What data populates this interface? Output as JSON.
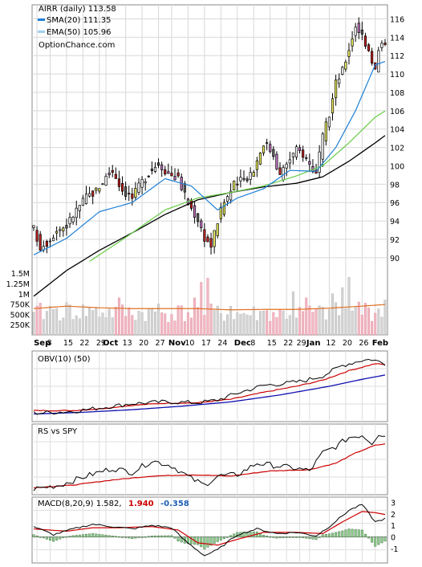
{
  "chart_data": [
    {
      "type": "candlestick",
      "title": "AIRR (daily) 113.58",
      "watermark": "OptionChance.com",
      "legend": [
        {
          "label": "SMA(20) 111.35",
          "color": "#1e7fd6"
        },
        {
          "label": "EMA(50) 105.96",
          "color": "#9fd0f0"
        }
      ],
      "x_tick_labels": [
        "Sep",
        "8",
        "15",
        "22",
        "29",
        "Oct",
        "13",
        "20",
        "27",
        "Nov",
        "10",
        "17",
        "24",
        "Dec",
        "8",
        "15",
        "22",
        "29",
        "Jan",
        "12",
        "20",
        "26",
        "Feb"
      ],
      "y_tick_labels": [
        "116",
        "114",
        "112",
        "110",
        "108",
        "106",
        "104",
        "102",
        "100",
        "98",
        "96",
        "94",
        "92",
        "90"
      ],
      "ylim": [
        88.5,
        117
      ],
      "grid": true,
      "close_anchors": [
        [
          0,
          93.1
        ],
        [
          2,
          91.2
        ],
        [
          4,
          91.7
        ],
        [
          7,
          93.0
        ],
        [
          10,
          93.5
        ],
        [
          13,
          95.2
        ],
        [
          16,
          96.6
        ],
        [
          19,
          97.3
        ],
        [
          22,
          98.8
        ],
        [
          24,
          99.5
        ],
        [
          27,
          97.4
        ],
        [
          30,
          96.5
        ],
        [
          33,
          98.3
        ],
        [
          36,
          99.7
        ],
        [
          38,
          100.3
        ],
        [
          41,
          99.2
        ],
        [
          44,
          98.6
        ],
        [
          47,
          95.9
        ],
        [
          50,
          94.2
        ],
        [
          52,
          92.2
        ],
        [
          54,
          91.3
        ],
        [
          56,
          94.0
        ],
        [
          58,
          96.1
        ],
        [
          61,
          97.9
        ],
        [
          64,
          98.5
        ],
        [
          67,
          99.6
        ],
        [
          70,
          102.6
        ],
        [
          73,
          101.3
        ],
        [
          75,
          98.9
        ],
        [
          77,
          100.3
        ],
        [
          80,
          101.7
        ],
        [
          82,
          101.3
        ],
        [
          84,
          100.2
        ],
        [
          86,
          99.1
        ],
        [
          88,
          103.0
        ],
        [
          90,
          105.6
        ],
        [
          92,
          109.0
        ],
        [
          94,
          110.3
        ],
        [
          96,
          112.8
        ],
        [
          98,
          115.3
        ],
        [
          100,
          114.2
        ],
        [
          102,
          112.7
        ],
        [
          104,
          110.4
        ],
        [
          105,
          112.5
        ],
        [
          107,
          113.6
        ]
      ],
      "sma20_anchors": [
        [
          0,
          90.3
        ],
        [
          10,
          92.1
        ],
        [
          20,
          95.0
        ],
        [
          30,
          96.0
        ],
        [
          40,
          98.6
        ],
        [
          48,
          97.8
        ],
        [
          56,
          95.2
        ],
        [
          62,
          96.5
        ],
        [
          70,
          97.5
        ],
        [
          78,
          99.5
        ],
        [
          86,
          99.4
        ],
        [
          92,
          102.0
        ],
        [
          98,
          106.0
        ],
        [
          104,
          111.0
        ],
        [
          107,
          111.35
        ]
      ],
      "ema50_anchors": [
        [
          17,
          89.6
        ],
        [
          28,
          92.2
        ],
        [
          40,
          95.2
        ],
        [
          50,
          96.5
        ],
        [
          60,
          97.1
        ],
        [
          70,
          97.8
        ],
        [
          80,
          98.9
        ],
        [
          88,
          100.0
        ],
        [
          96,
          102.5
        ],
        [
          104,
          105.3
        ],
        [
          107,
          105.96
        ]
      ],
      "black_ma_anchors": [
        [
          0,
          85.8
        ],
        [
          10,
          88.6
        ],
        [
          20,
          90.8
        ],
        [
          30,
          92.7
        ],
        [
          40,
          94.7
        ],
        [
          50,
          96.3
        ],
        [
          60,
          97.1
        ],
        [
          70,
          97.7
        ],
        [
          80,
          98.1
        ],
        [
          88,
          98.8
        ],
        [
          96,
          100.5
        ],
        [
          104,
          102.5
        ],
        [
          107,
          103.3
        ]
      ],
      "volume": {
        "y_tick_labels": [
          "1.5M",
          "1.25M",
          "1M",
          "750K",
          "500K",
          "250K"
        ],
        "ylim": [
          0,
          1700000
        ],
        "avg_anchors": [
          [
            0,
            640000
          ],
          [
            10,
            700000
          ],
          [
            20,
            660000
          ],
          [
            30,
            640000
          ],
          [
            40,
            640000
          ],
          [
            50,
            640000
          ],
          [
            60,
            610000
          ],
          [
            70,
            620000
          ],
          [
            80,
            620000
          ],
          [
            90,
            650000
          ],
          [
            100,
            700000
          ],
          [
            107,
            740000
          ]
        ],
        "spikes": [
          [
            0,
            550000
          ],
          [
            5,
            700000
          ],
          [
            17,
            650000
          ],
          [
            26,
            900000
          ],
          [
            38,
            750000
          ],
          [
            49,
            900000
          ],
          [
            51,
            1280000
          ],
          [
            53,
            1380000
          ],
          [
            60,
            700000
          ],
          [
            70,
            580000
          ],
          [
            79,
            1050000
          ],
          [
            83,
            900000
          ],
          [
            91,
            1000000
          ],
          [
            94,
            1150000
          ],
          [
            96,
            1400000
          ],
          [
            99,
            800000
          ],
          [
            107,
            850000
          ]
        ]
      }
    },
    {
      "type": "line",
      "title": "OBV(10) (50)",
      "black_anchors": [
        [
          0,
          -0.3
        ],
        [
          12,
          -0.1
        ],
        [
          20,
          0.3
        ],
        [
          30,
          0.8
        ],
        [
          40,
          1.0
        ],
        [
          50,
          0.9
        ],
        [
          56,
          1.2
        ],
        [
          62,
          2.0
        ],
        [
          70,
          2.9
        ],
        [
          76,
          3.1
        ],
        [
          82,
          3.4
        ],
        [
          88,
          4.0
        ],
        [
          94,
          5.2
        ],
        [
          100,
          5.8
        ],
        [
          103,
          5.9
        ],
        [
          107,
          5.4
        ]
      ],
      "red_anchors": [
        [
          0,
          0.0
        ],
        [
          12,
          0.0
        ],
        [
          20,
          0.2
        ],
        [
          30,
          0.6
        ],
        [
          40,
          0.85
        ],
        [
          50,
          0.9
        ],
        [
          60,
          1.3
        ],
        [
          70,
          2.1
        ],
        [
          80,
          2.8
        ],
        [
          88,
          3.5
        ],
        [
          96,
          4.6
        ],
        [
          104,
          5.4
        ],
        [
          107,
          5.3
        ]
      ],
      "blue_anchors": [
        [
          0,
          -0.4
        ],
        [
          15,
          -0.2
        ],
        [
          30,
          0.1
        ],
        [
          45,
          0.5
        ],
        [
          60,
          1.0
        ],
        [
          75,
          1.8
        ],
        [
          90,
          2.8
        ],
        [
          100,
          3.6
        ],
        [
          107,
          4.1
        ]
      ],
      "ylim": [
        -1,
        6.5
      ]
    },
    {
      "type": "line",
      "title": "RS vs SPY",
      "black_anchors": [
        [
          0,
          0.2
        ],
        [
          8,
          0.5
        ],
        [
          16,
          1.2
        ],
        [
          24,
          1.8
        ],
        [
          30,
          1.5
        ],
        [
          36,
          2.4
        ],
        [
          42,
          2.0
        ],
        [
          48,
          1.0
        ],
        [
          52,
          0.5
        ],
        [
          56,
          1.2
        ],
        [
          62,
          1.3
        ],
        [
          68,
          2.2
        ],
        [
          74,
          2.0
        ],
        [
          80,
          1.8
        ],
        [
          84,
          1.6
        ],
        [
          88,
          3.0
        ],
        [
          92,
          3.5
        ],
        [
          96,
          4.2
        ],
        [
          100,
          4.4
        ],
        [
          103,
          3.8
        ],
        [
          105,
          4.5
        ],
        [
          107,
          4.3
        ]
      ],
      "red_anchors": [
        [
          0,
          0.3
        ],
        [
          12,
          0.5
        ],
        [
          24,
          0.9
        ],
        [
          36,
          1.2
        ],
        [
          48,
          1.3
        ],
        [
          60,
          1.2
        ],
        [
          72,
          1.6
        ],
        [
          84,
          1.7
        ],
        [
          92,
          2.2
        ],
        [
          98,
          3.0
        ],
        [
          104,
          3.6
        ],
        [
          107,
          3.7
        ]
      ],
      "ylim": [
        0,
        5
      ]
    },
    {
      "type": "line_and_bar",
      "title": "MACD(8,20,9) 1.582,",
      "values": {
        "macd": "1.582",
        "signal": "1.940",
        "histogram": "-0.358"
      },
      "colors": {
        "macd": "#000000",
        "signal": "#cc0000",
        "histogram": "#1e5fb4"
      },
      "y_tick_labels": [
        "3",
        "2",
        "1",
        "0",
        "-1"
      ],
      "ylim": [
        -2.1,
        3.3
      ],
      "macd_anchors": [
        [
          0,
          0.9
        ],
        [
          6,
          0.2
        ],
        [
          12,
          0.7
        ],
        [
          18,
          1.1
        ],
        [
          24,
          0.9
        ],
        [
          30,
          0.7
        ],
        [
          36,
          1.0
        ],
        [
          42,
          0.8
        ],
        [
          46,
          -0.3
        ],
        [
          52,
          -1.6
        ],
        [
          56,
          -1.1
        ],
        [
          62,
          0.2
        ],
        [
          68,
          0.7
        ],
        [
          74,
          0.3
        ],
        [
          80,
          0.4
        ],
        [
          86,
          0.1
        ],
        [
          90,
          0.9
        ],
        [
          96,
          2.3
        ],
        [
          100,
          2.8
        ],
        [
          104,
          1.3
        ],
        [
          107,
          1.582
        ]
      ],
      "signal_anchors": [
        [
          0,
          0.7
        ],
        [
          10,
          0.5
        ],
        [
          18,
          0.8
        ],
        [
          26,
          0.8
        ],
        [
          36,
          0.9
        ],
        [
          44,
          0.6
        ],
        [
          50,
          -0.5
        ],
        [
          56,
          -0.7
        ],
        [
          62,
          -0.2
        ],
        [
          70,
          0.4
        ],
        [
          80,
          0.4
        ],
        [
          88,
          0.3
        ],
        [
          94,
          1.3
        ],
        [
          100,
          2.2
        ],
        [
          104,
          2.1
        ],
        [
          107,
          1.94
        ]
      ]
    }
  ]
}
